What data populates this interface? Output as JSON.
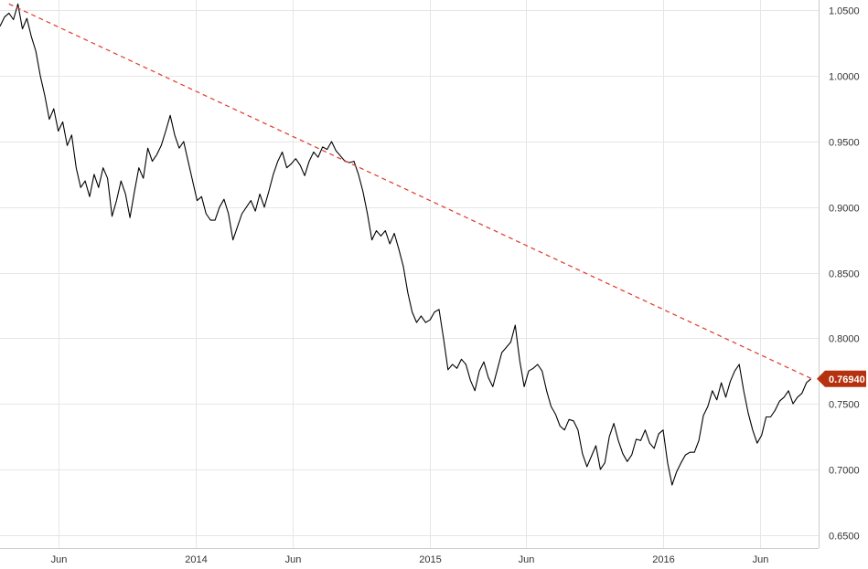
{
  "chart_data": {
    "type": "line",
    "title": "",
    "xlabel": "",
    "ylabel": "",
    "ylim": [
      0.64,
      1.058
    ],
    "x_range": [
      "2013-03-01",
      "2016-08-31"
    ],
    "grid": true,
    "y_ticks": [
      "1.0500",
      "1.0000",
      "0.9500",
      "0.9000",
      "0.8500",
      "0.8000",
      "0.7500",
      "0.7000",
      "0.6500"
    ],
    "x_ticks": [
      {
        "label": "Jun",
        "date": "2013-06-01"
      },
      {
        "label": "2014",
        "date": "2014-01-01"
      },
      {
        "label": "Jun",
        "date": "2014-06-01"
      },
      {
        "label": "2015",
        "date": "2015-01-01"
      },
      {
        "label": "Jun",
        "date": "2015-06-01"
      },
      {
        "label": "2016",
        "date": "2016-01-01"
      },
      {
        "label": "Jun",
        "date": "2016-06-01"
      }
    ],
    "last_value_label": "0.76940",
    "colors": {
      "price_line": "#000000",
      "trendline": "#e03a2a",
      "last_value_tag": "#b5310f",
      "grid": "#e6e6e6"
    },
    "series": [
      {
        "style": "solid",
        "points": [
          [
            "2013-03-01",
            1.038
          ],
          [
            "2013-03-08",
            1.045
          ],
          [
            "2013-03-15",
            1.048
          ],
          [
            "2013-03-22",
            1.043
          ],
          [
            "2013-03-29",
            1.055
          ],
          [
            "2013-04-05",
            1.036
          ],
          [
            "2013-04-12",
            1.044
          ],
          [
            "2013-04-19",
            1.03
          ],
          [
            "2013-04-26",
            1.019
          ],
          [
            "2013-05-03",
            1.0
          ],
          [
            "2013-05-10",
            0.985
          ],
          [
            "2013-05-17",
            0.967
          ],
          [
            "2013-05-24",
            0.975
          ],
          [
            "2013-05-31",
            0.958
          ],
          [
            "2013-06-07",
            0.965
          ],
          [
            "2013-06-14",
            0.947
          ],
          [
            "2013-06-21",
            0.955
          ],
          [
            "2013-06-28",
            0.93
          ],
          [
            "2013-07-05",
            0.915
          ],
          [
            "2013-07-12",
            0.92
          ],
          [
            "2013-07-19",
            0.908
          ],
          [
            "2013-07-26",
            0.925
          ],
          [
            "2013-08-02",
            0.915
          ],
          [
            "2013-08-09",
            0.93
          ],
          [
            "2013-08-16",
            0.922
          ],
          [
            "2013-08-23",
            0.893
          ],
          [
            "2013-08-30",
            0.905
          ],
          [
            "2013-09-06",
            0.92
          ],
          [
            "2013-09-13",
            0.91
          ],
          [
            "2013-09-20",
            0.892
          ],
          [
            "2013-09-27",
            0.912
          ],
          [
            "2013-10-04",
            0.93
          ],
          [
            "2013-10-11",
            0.922
          ],
          [
            "2013-10-18",
            0.945
          ],
          [
            "2013-10-25",
            0.935
          ],
          [
            "2013-11-01",
            0.94
          ],
          [
            "2013-11-08",
            0.947
          ],
          [
            "2013-11-15",
            0.958
          ],
          [
            "2013-11-22",
            0.97
          ],
          [
            "2013-11-29",
            0.955
          ],
          [
            "2013-12-06",
            0.945
          ],
          [
            "2013-12-13",
            0.95
          ],
          [
            "2013-12-20",
            0.935
          ],
          [
            "2013-12-27",
            0.92
          ],
          [
            "2014-01-03",
            0.905
          ],
          [
            "2014-01-10",
            0.908
          ],
          [
            "2014-01-17",
            0.895
          ],
          [
            "2014-01-24",
            0.89
          ],
          [
            "2014-01-31",
            0.89
          ],
          [
            "2014-02-07",
            0.9
          ],
          [
            "2014-02-14",
            0.906
          ],
          [
            "2014-02-21",
            0.895
          ],
          [
            "2014-02-28",
            0.875
          ],
          [
            "2014-03-07",
            0.885
          ],
          [
            "2014-03-14",
            0.895
          ],
          [
            "2014-03-21",
            0.9
          ],
          [
            "2014-03-28",
            0.905
          ],
          [
            "2014-04-04",
            0.897
          ],
          [
            "2014-04-11",
            0.91
          ],
          [
            "2014-04-18",
            0.9
          ],
          [
            "2014-04-25",
            0.912
          ],
          [
            "2014-05-02",
            0.925
          ],
          [
            "2014-05-09",
            0.935
          ],
          [
            "2014-05-16",
            0.942
          ],
          [
            "2014-05-23",
            0.93
          ],
          [
            "2014-05-30",
            0.933
          ],
          [
            "2014-06-06",
            0.937
          ],
          [
            "2014-06-13",
            0.932
          ],
          [
            "2014-06-20",
            0.924
          ],
          [
            "2014-06-27",
            0.935
          ],
          [
            "2014-07-04",
            0.942
          ],
          [
            "2014-07-11",
            0.938
          ],
          [
            "2014-07-18",
            0.946
          ],
          [
            "2014-07-25",
            0.944
          ],
          [
            "2014-08-01",
            0.95
          ],
          [
            "2014-08-08",
            0.943
          ],
          [
            "2014-08-15",
            0.939
          ],
          [
            "2014-08-22",
            0.935
          ],
          [
            "2014-08-29",
            0.934
          ],
          [
            "2014-09-05",
            0.935
          ],
          [
            "2014-09-12",
            0.925
          ],
          [
            "2014-09-19",
            0.912
          ],
          [
            "2014-09-26",
            0.895
          ],
          [
            "2014-10-03",
            0.875
          ],
          [
            "2014-10-10",
            0.882
          ],
          [
            "2014-10-17",
            0.878
          ],
          [
            "2014-10-24",
            0.882
          ],
          [
            "2014-10-31",
            0.872
          ],
          [
            "2014-11-07",
            0.88
          ],
          [
            "2014-11-14",
            0.868
          ],
          [
            "2014-11-21",
            0.855
          ],
          [
            "2014-11-28",
            0.835
          ],
          [
            "2014-12-05",
            0.82
          ],
          [
            "2014-12-12",
            0.812
          ],
          [
            "2014-12-19",
            0.817
          ],
          [
            "2014-12-26",
            0.812
          ],
          [
            "2015-01-02",
            0.814
          ],
          [
            "2015-01-09",
            0.82
          ],
          [
            "2015-01-16",
            0.822
          ],
          [
            "2015-01-23",
            0.8
          ],
          [
            "2015-01-30",
            0.776
          ],
          [
            "2015-02-06",
            0.78
          ],
          [
            "2015-02-13",
            0.777
          ],
          [
            "2015-02-20",
            0.784
          ],
          [
            "2015-02-27",
            0.78
          ],
          [
            "2015-03-06",
            0.768
          ],
          [
            "2015-03-13",
            0.76
          ],
          [
            "2015-03-20",
            0.775
          ],
          [
            "2015-03-27",
            0.782
          ],
          [
            "2015-04-03",
            0.77
          ],
          [
            "2015-04-10",
            0.763
          ],
          [
            "2015-04-17",
            0.776
          ],
          [
            "2015-04-24",
            0.789
          ],
          [
            "2015-05-01",
            0.793
          ],
          [
            "2015-05-08",
            0.797
          ],
          [
            "2015-05-15",
            0.81
          ],
          [
            "2015-05-22",
            0.783
          ],
          [
            "2015-05-29",
            0.763
          ],
          [
            "2015-06-05",
            0.775
          ],
          [
            "2015-06-12",
            0.777
          ],
          [
            "2015-06-19",
            0.78
          ],
          [
            "2015-06-26",
            0.775
          ],
          [
            "2015-07-03",
            0.76
          ],
          [
            "2015-07-10",
            0.748
          ],
          [
            "2015-07-17",
            0.742
          ],
          [
            "2015-07-24",
            0.733
          ],
          [
            "2015-07-31",
            0.73
          ],
          [
            "2015-08-07",
            0.738
          ],
          [
            "2015-08-14",
            0.737
          ],
          [
            "2015-08-21",
            0.73
          ],
          [
            "2015-08-28",
            0.712
          ],
          [
            "2015-09-04",
            0.702
          ],
          [
            "2015-09-11",
            0.71
          ],
          [
            "2015-09-18",
            0.718
          ],
          [
            "2015-09-25",
            0.7
          ],
          [
            "2015-10-02",
            0.705
          ],
          [
            "2015-10-09",
            0.725
          ],
          [
            "2015-10-16",
            0.735
          ],
          [
            "2015-10-23",
            0.722
          ],
          [
            "2015-10-30",
            0.712
          ],
          [
            "2015-11-06",
            0.706
          ],
          [
            "2015-11-13",
            0.711
          ],
          [
            "2015-11-20",
            0.723
          ],
          [
            "2015-11-27",
            0.722
          ],
          [
            "2015-12-04",
            0.73
          ],
          [
            "2015-12-11",
            0.72
          ],
          [
            "2015-12-18",
            0.716
          ],
          [
            "2015-12-25",
            0.727
          ],
          [
            "2016-01-01",
            0.73
          ],
          [
            "2016-01-08",
            0.705
          ],
          [
            "2016-01-15",
            0.688
          ],
          [
            "2016-01-22",
            0.698
          ],
          [
            "2016-01-29",
            0.705
          ],
          [
            "2016-02-05",
            0.711
          ],
          [
            "2016-02-12",
            0.713
          ],
          [
            "2016-02-19",
            0.713
          ],
          [
            "2016-02-26",
            0.722
          ],
          [
            "2016-03-04",
            0.741
          ],
          [
            "2016-03-11",
            0.748
          ],
          [
            "2016-03-18",
            0.76
          ],
          [
            "2016-03-25",
            0.753
          ],
          [
            "2016-04-01",
            0.766
          ],
          [
            "2016-04-08",
            0.755
          ],
          [
            "2016-04-15",
            0.767
          ],
          [
            "2016-04-22",
            0.775
          ],
          [
            "2016-04-29",
            0.78
          ],
          [
            "2016-05-06",
            0.76
          ],
          [
            "2016-05-13",
            0.743
          ],
          [
            "2016-05-20",
            0.73
          ],
          [
            "2016-05-27",
            0.72
          ],
          [
            "2016-06-03",
            0.726
          ],
          [
            "2016-06-10",
            0.74
          ],
          [
            "2016-06-17",
            0.74
          ],
          [
            "2016-06-24",
            0.745
          ],
          [
            "2016-07-01",
            0.752
          ],
          [
            "2016-07-08",
            0.755
          ],
          [
            "2016-07-15",
            0.76
          ],
          [
            "2016-07-22",
            0.75
          ],
          [
            "2016-07-29",
            0.755
          ],
          [
            "2016-08-05",
            0.758
          ],
          [
            "2016-08-12",
            0.766
          ],
          [
            "2016-08-19",
            0.769
          ]
        ]
      },
      {
        "style": "dashed",
        "points": [
          [
            "2013-03-15",
            1.055
          ],
          [
            "2016-08-19",
            0.7694
          ]
        ]
      }
    ]
  }
}
